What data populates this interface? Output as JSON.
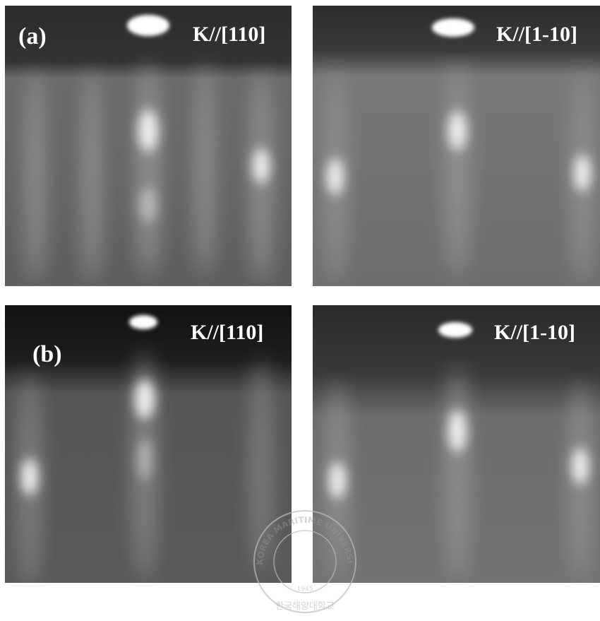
{
  "panels": [
    {
      "label": "(a)",
      "direction": "K//[110]"
    },
    {
      "direction": "K//[1-10]"
    },
    {
      "label": "(b)",
      "direction": "K//[110]"
    },
    {
      "direction": "K//[1-10]"
    }
  ],
  "watermark": {
    "name": "KOREA MARITIME UNIVERSITY",
    "year": "1945",
    "korean": "한국해양대학교"
  }
}
